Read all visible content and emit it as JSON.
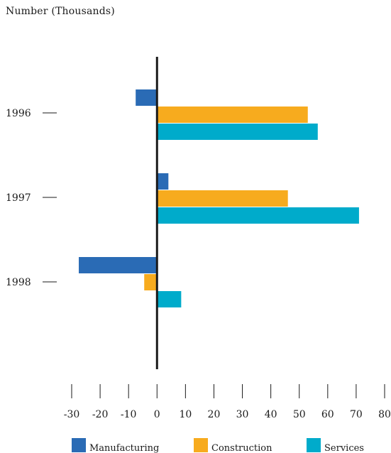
{
  "chart_data": {
    "type": "bar",
    "orientation": "horizontal",
    "title": "Number (Thousands)",
    "categories": [
      "1996",
      "1997",
      "1998"
    ],
    "series": [
      {
        "name": "Manufacturing",
        "color": "#2a6bb5",
        "values": [
          -7.5,
          4,
          -27.5
        ]
      },
      {
        "name": "Construction",
        "color": "#f7ab1e",
        "values": [
          53,
          46,
          -4.5
        ]
      },
      {
        "name": "Services",
        "color": "#00abcb",
        "values": [
          56.5,
          71,
          8.5
        ]
      }
    ],
    "xlim": [
      -30,
      80
    ],
    "xticks": [
      -30,
      -20,
      -10,
      0,
      10,
      20,
      30,
      40,
      50,
      60,
      70,
      80
    ],
    "grid": false,
    "legend_position": "bottom"
  }
}
